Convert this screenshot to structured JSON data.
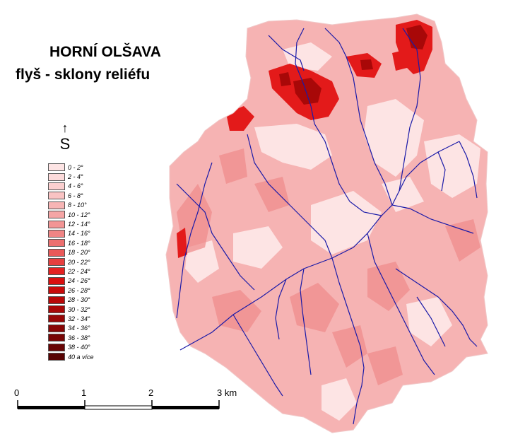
{
  "title": "HORNÍ OLŠAVA",
  "subtitle": "flyš - sklony reliéfu",
  "north": {
    "arrow": "↑",
    "letter": "S"
  },
  "legend": [
    {
      "label": "0 - 2°",
      "color": "#fde4e4"
    },
    {
      "label": "2 - 4°",
      "color": "#fcdada"
    },
    {
      "label": "4 - 6°",
      "color": "#fbcfcf"
    },
    {
      "label": "6 - 8°",
      "color": "#f9c3c3"
    },
    {
      "label": "8 - 10°",
      "color": "#f7b5b5"
    },
    {
      "label": "10 - 12°",
      "color": "#f5a5a5"
    },
    {
      "label": "12 - 14°",
      "color": "#f29595"
    },
    {
      "label": "14 - 16°",
      "color": "#ef8484"
    },
    {
      "label": "16 - 18°",
      "color": "#ec6f6f"
    },
    {
      "label": "18 - 20°",
      "color": "#e95959"
    },
    {
      "label": "20 - 22°",
      "color": "#e63f3f"
    },
    {
      "label": "22 - 24°",
      "color": "#e42222"
    },
    {
      "label": "24 - 26°",
      "color": "#d91010"
    },
    {
      "label": "26 - 28°",
      "color": "#c80c0c"
    },
    {
      "label": "28 - 30°",
      "color": "#b80909"
    },
    {
      "label": "30 - 32°",
      "color": "#a80808"
    },
    {
      "label": "32 - 34°",
      "color": "#980707"
    },
    {
      "label": "34 - 36°",
      "color": "#880606"
    },
    {
      "label": "36 - 38°",
      "color": "#780505"
    },
    {
      "label": "38 - 40°",
      "color": "#680404"
    },
    {
      "label": "40 a více",
      "color": "#580303"
    }
  ],
  "scale": {
    "labels": [
      "0",
      "1",
      "2",
      "3 km"
    ]
  },
  "colors": {
    "stream": "#1a1aa8",
    "background": "#ffffff"
  }
}
